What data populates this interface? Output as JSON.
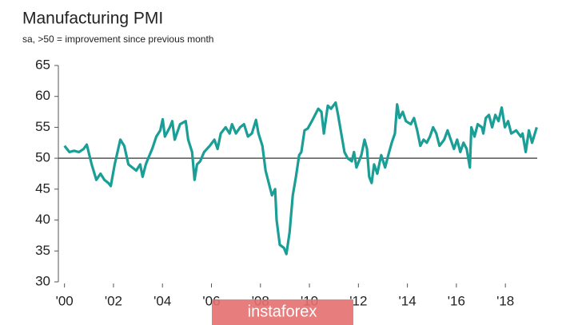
{
  "chart_data": {
    "type": "line",
    "title": "Manufacturing PMI",
    "subtitle": "sa, >50 = improvement since previous month",
    "watermark": "instaforex",
    "reference_line": 50,
    "xlim": [
      1999.75,
      2019.3
    ],
    "ylim": [
      30,
      65
    ],
    "yticks": [
      30,
      35,
      40,
      45,
      50,
      55,
      60,
      65
    ],
    "xticks": [
      {
        "value": 2000,
        "label": "'00"
      },
      {
        "value": 2002,
        "label": "'02"
      },
      {
        "value": 2004,
        "label": "'04"
      },
      {
        "value": 2006,
        "label": "'06"
      },
      {
        "value": 2008,
        "label": "'08"
      },
      {
        "value": 2010,
        "label": "'10"
      },
      {
        "value": 2012,
        "label": "'12"
      },
      {
        "value": 2014,
        "label": "'14"
      },
      {
        "value": 2016,
        "label": "'16"
      },
      {
        "value": 2018,
        "label": "'18"
      }
    ],
    "series": [
      {
        "color": "#1a9e96",
        "x": [
          2000.0,
          2000.2,
          2000.39,
          2000.59,
          2000.78,
          2000.91,
          2001.11,
          2001.3,
          2001.47,
          2001.63,
          2001.79,
          2001.89,
          2002.05,
          2002.28,
          2002.44,
          2002.61,
          2002.77,
          2002.93,
          2003.09,
          2003.19,
          2003.32,
          2003.42,
          2003.58,
          2003.75,
          2003.91,
          2004.01,
          2004.1,
          2004.3,
          2004.4,
          2004.5,
          2004.72,
          2004.95,
          2005.05,
          2005.21,
          2005.31,
          2005.41,
          2005.54,
          2005.7,
          2005.93,
          2006.12,
          2006.25,
          2006.38,
          2006.58,
          2006.74,
          2006.84,
          2007.0,
          2007.17,
          2007.33,
          2007.49,
          2007.65,
          2007.82,
          2007.92,
          2008.08,
          2008.21,
          2008.34,
          2008.47,
          2008.6,
          2008.66,
          2008.79,
          2008.96,
          2009.06,
          2009.19,
          2009.32,
          2009.45,
          2009.58,
          2009.67,
          2009.8,
          2009.93,
          2010.1,
          2010.23,
          2010.36,
          2010.49,
          2010.59,
          2010.75,
          2010.88,
          2011.07,
          2011.17,
          2011.3,
          2011.43,
          2011.56,
          2011.73,
          2011.82,
          2011.92,
          2012.12,
          2012.25,
          2012.35,
          2012.44,
          2012.54,
          2012.64,
          2012.77,
          2012.93,
          2013.09,
          2013.22,
          2013.36,
          2013.49,
          2013.58,
          2013.68,
          2013.81,
          2013.94,
          2014.14,
          2014.27,
          2014.4,
          2014.53,
          2014.66,
          2014.79,
          2014.92,
          2015.05,
          2015.18,
          2015.31,
          2015.5,
          2015.64,
          2015.77,
          2015.9,
          2016.03,
          2016.16,
          2016.29,
          2016.42,
          2016.55,
          2016.61,
          2016.74,
          2016.87,
          2017.04,
          2017.1,
          2017.2,
          2017.33,
          2017.46,
          2017.59,
          2017.72,
          2017.85,
          2017.98,
          2018.11,
          2018.24,
          2018.44,
          2018.63,
          2018.7,
          2018.83,
          2018.96,
          2019.09,
          2019.28
        ],
        "values": [
          52,
          51,
          51.2,
          51,
          51.5,
          52.2,
          49,
          46.5,
          47.5,
          46.5,
          46,
          45.5,
          49,
          53,
          52,
          49,
          48.5,
          48,
          49,
          47,
          49,
          50,
          51.5,
          53.5,
          54.5,
          56.3,
          53.5,
          55,
          56,
          53,
          55.5,
          56,
          53,
          51,
          46.5,
          49,
          49.5,
          51,
          52,
          53,
          51.5,
          54,
          55,
          54,
          55.5,
          54,
          55,
          55.5,
          53.5,
          54,
          56.2,
          54,
          52,
          48,
          46,
          44,
          45,
          40,
          36,
          35.5,
          34.5,
          38,
          44,
          47,
          50.5,
          51,
          54.5,
          54.8,
          56,
          57,
          58,
          57.5,
          54,
          58.5,
          58,
          59,
          57,
          54,
          51,
          50,
          49.5,
          51,
          48.5,
          50.5,
          53,
          51.5,
          47,
          46,
          49,
          47.5,
          50.5,
          48.5,
          50.5,
          52.5,
          54,
          58.7,
          56.5,
          57.5,
          56,
          55.5,
          56.5,
          54.5,
          52,
          53,
          52.5,
          53.5,
          55,
          54,
          52,
          53,
          54.5,
          53,
          51.5,
          53,
          51,
          52.5,
          51.5,
          48.5,
          55,
          53.5,
          55.5,
          55,
          54,
          56.5,
          57,
          55,
          57,
          56,
          58.2,
          55,
          56,
          54,
          54.5,
          53.5,
          54,
          51,
          54.5,
          52.5,
          55
        ]
      }
    ]
  }
}
